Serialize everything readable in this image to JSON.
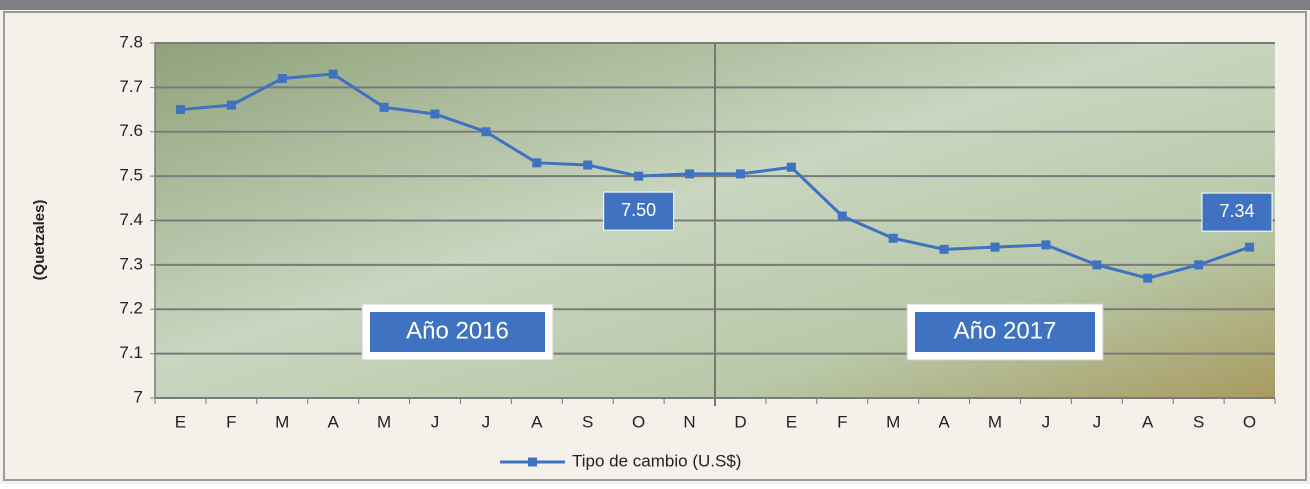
{
  "chart_data": {
    "type": "line",
    "y_label": "(Quetzales)",
    "categories": [
      "E",
      "F",
      "M",
      "A",
      "M",
      "J",
      "J",
      "A",
      "S",
      "O",
      "N",
      "D",
      "E",
      "F",
      "M",
      "A",
      "M",
      "J",
      "J",
      "A",
      "S",
      "O"
    ],
    "series": [
      {
        "name": "Tipo de cambio (U.S$)",
        "color": "#3f72c0",
        "values": [
          7.65,
          7.66,
          7.72,
          7.73,
          7.655,
          7.64,
          7.6,
          7.53,
          7.525,
          7.5,
          7.505,
          7.505,
          7.52,
          7.41,
          7.36,
          7.335,
          7.34,
          7.345,
          7.3,
          7.27,
          7.3,
          7.34
        ],
        "value_labels": [
          null,
          null,
          null,
          null,
          null,
          null,
          null,
          null,
          null,
          "7.50",
          null,
          null,
          null,
          null,
          null,
          null,
          null,
          null,
          null,
          null,
          null,
          "7.34"
        ]
      }
    ],
    "annotations": [
      "Año 2016",
      "Año 2017"
    ],
    "ylim": [
      7,
      7.8
    ],
    "yticks": [
      7,
      7.1,
      7.2,
      7.3,
      7.4,
      7.5,
      7.6,
      7.7,
      7.8
    ],
    "grid": true
  }
}
